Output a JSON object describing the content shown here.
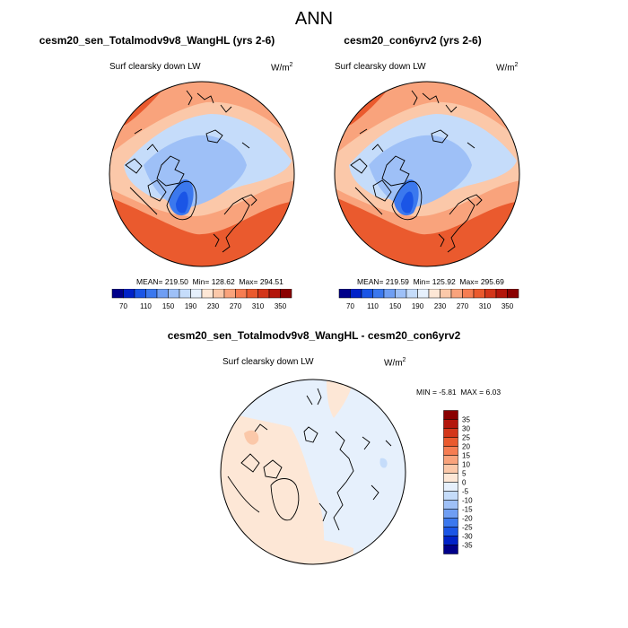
{
  "title": "ANN",
  "panels": [
    {
      "title": "cesm20_sen_Totalmodv9v8_WangHL (yrs 2-6)",
      "variable": "Surf clearsky down LW",
      "units_base": "W/m",
      "units_exp": "2",
      "mean_label": "MEAN=",
      "mean": "219.50",
      "min_label": "Min=",
      "min": "128.62",
      "max_label": "Max=",
      "max": "294.51"
    },
    {
      "title": "cesm20_con6yrv2 (yrs 2-6)",
      "variable": "Surf clearsky down LW",
      "units_base": "W/m",
      "units_exp": "2",
      "mean_label": "MEAN=",
      "mean": "219.59",
      "min_label": "Min=",
      "min": "125.92",
      "max_label": "Max=",
      "max": "295.69"
    }
  ],
  "diff": {
    "title": "cesm20_sen_Totalmodv9v8_WangHL - cesm20_con6yrv2",
    "variable": "Surf clearsky down LW",
    "units_base": "W/m",
    "units_exp": "2",
    "min_label": "MIN =",
    "min": "-5.81",
    "max_label": "MAX =",
    "max": "6.03"
  },
  "colorbar_main": {
    "labels": [
      "70",
      "110",
      "150",
      "190",
      "230",
      "270",
      "310",
      "350"
    ],
    "colors": [
      "#00008a",
      "#0022c8",
      "#1a55e6",
      "#3b78ee",
      "#6f9ef3",
      "#9ec0f7",
      "#c5dcfa",
      "#e6f0fc",
      "#fde7d6",
      "#fbc8a9",
      "#f9a37c",
      "#f67d52",
      "#ea5a2e",
      "#d3361a",
      "#b3160b",
      "#8a0000"
    ]
  },
  "colorbar_diff": {
    "labels": [
      "35",
      "30",
      "25",
      "20",
      "15",
      "10",
      "5",
      "0",
      "-5",
      "-10",
      "-15",
      "-20",
      "-25",
      "-30",
      "-35"
    ],
    "colors": [
      "#8a0000",
      "#b3160b",
      "#d3361a",
      "#ea5a2e",
      "#f67d52",
      "#f9a37c",
      "#fbc8a9",
      "#fde7d6",
      "#e6f0fc",
      "#c5dcfa",
      "#9ec0f7",
      "#6f9ef3",
      "#3b78ee",
      "#1a55e6",
      "#0022c8",
      "#00008a"
    ]
  }
}
